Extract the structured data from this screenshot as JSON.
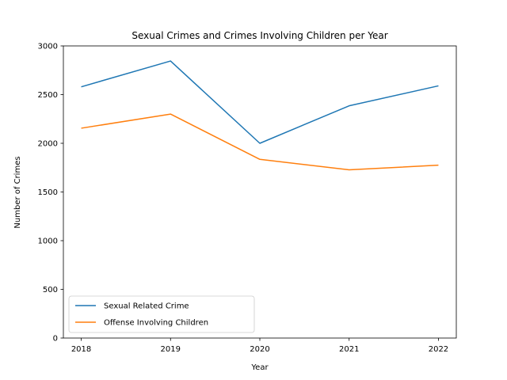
{
  "chart_data": {
    "type": "line",
    "title": "Sexual Crimes and Crimes Involving Children per Year",
    "xlabel": "Year",
    "ylabel": "Number of Crimes",
    "x": [
      2018,
      2019,
      2020,
      2021,
      2022
    ],
    "x_tick_labels": [
      "2018",
      "2019",
      "2020",
      "2021",
      "2022"
    ],
    "y_ticks": [
      0,
      500,
      1000,
      1500,
      2000,
      2500,
      3000
    ],
    "y_tick_labels": [
      "0",
      "500",
      "1000",
      "1500",
      "2000",
      "2500",
      "3000"
    ],
    "xlim": [
      2017.8,
      2022.2
    ],
    "ylim": [
      0,
      3000
    ],
    "grid": false,
    "legend_position": "lower-left",
    "series": [
      {
        "name": "Sexual Related Crime",
        "color": "#1f77b4",
        "values": [
          2580,
          2845,
          2000,
          2385,
          2590
        ]
      },
      {
        "name": "Offense Involving Children",
        "color": "#ff7f0e",
        "values": [
          2155,
          2300,
          1835,
          1728,
          1775
        ]
      }
    ]
  }
}
